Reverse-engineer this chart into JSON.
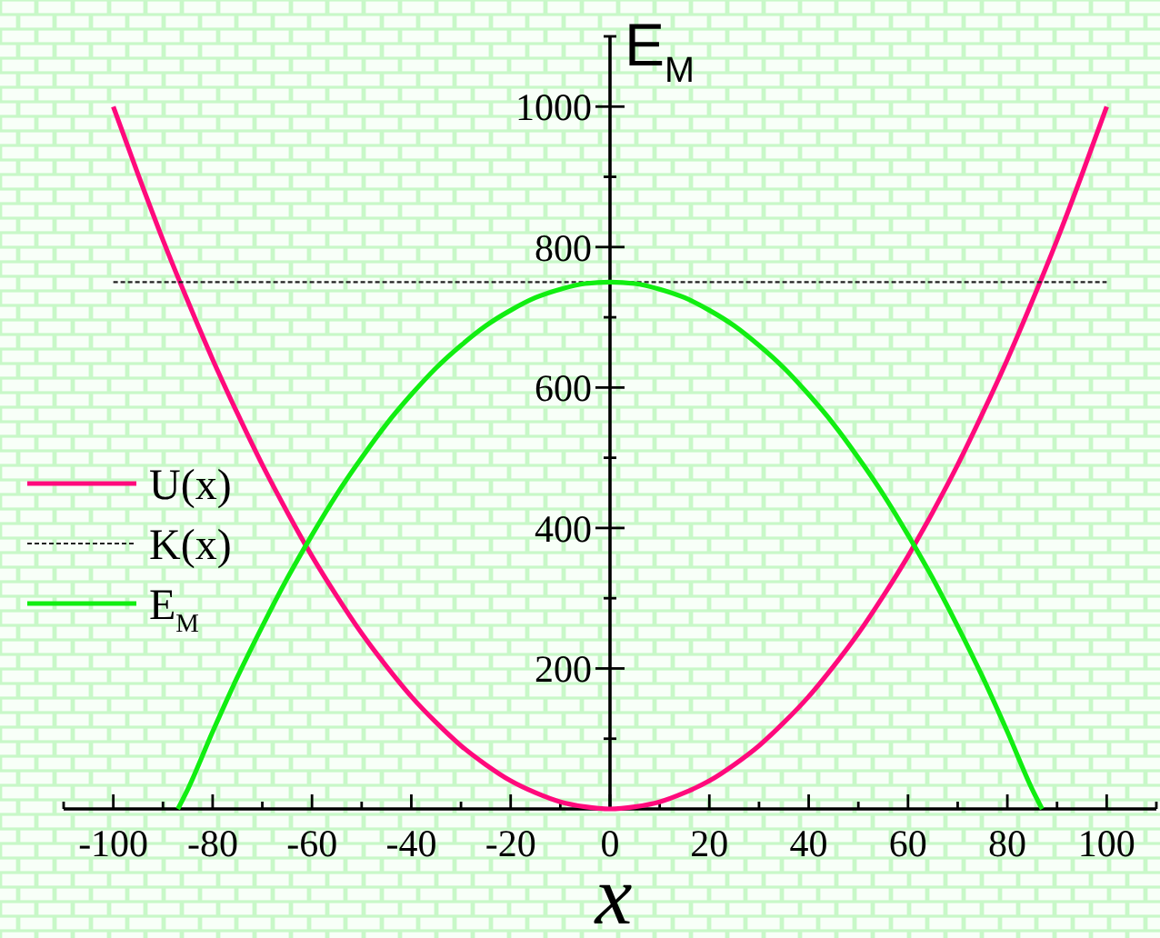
{
  "chart_data": {
    "type": "line",
    "xlabel": "x",
    "ylabel": "E$_{M}$",
    "xlim": [
      -110,
      110
    ],
    "ylim": [
      0,
      1100
    ],
    "xticks": [
      {
        "value": -110,
        "label": null
      },
      -100,
      {
        "value": -90,
        "label": null
      },
      -80,
      {
        "value": -70,
        "label": null
      },
      -60,
      {
        "value": -50,
        "label": null
      },
      -40,
      {
        "value": -30,
        "label": null
      },
      -20,
      {
        "value": -10,
        "label": null
      },
      0,
      {
        "value": 10,
        "label": null
      },
      20,
      {
        "value": 30,
        "label": null
      },
      40,
      {
        "value": 50,
        "label": null
      },
      60,
      {
        "value": 70,
        "label": null
      },
      80,
      {
        "value": 90,
        "label": null
      },
      100,
      {
        "value": 110,
        "label": null
      }
    ],
    "yticks": [
      {
        "value": 100,
        "label": null
      },
      200,
      {
        "value": 300,
        "label": null
      },
      400,
      {
        "value": 500,
        "label": null
      },
      600,
      {
        "value": 700,
        "label": null
      },
      800,
      {
        "value": 900,
        "label": null
      },
      1000,
      {
        "value": 1100,
        "label": null
      }
    ],
    "legend": "left",
    "series": [
      {
        "name": "U(x)",
        "color": "#ff0a7c",
        "x": [
          -100,
          -95,
          -90,
          -85,
          -80,
          -75,
          -70,
          -65,
          -60,
          -55,
          -50,
          -45,
          -40,
          -35,
          -30,
          -25,
          -20,
          -15,
          -10,
          -5,
          0,
          5,
          10,
          15,
          20,
          25,
          30,
          35,
          40,
          45,
          50,
          55,
          60,
          65,
          70,
          75,
          80,
          85,
          90,
          95,
          100
        ],
        "values": [
          1000,
          903,
          810,
          723,
          640,
          563,
          490,
          423,
          360,
          303,
          250,
          203,
          160,
          123,
          90,
          63,
          40,
          23,
          10,
          3,
          0,
          3,
          10,
          23,
          40,
          63,
          90,
          123,
          160,
          203,
          250,
          303,
          360,
          423,
          490,
          563,
          640,
          723,
          810,
          903,
          1000
        ]
      },
      {
        "name": "K(x)",
        "color": "#222222",
        "line_style": "dashed",
        "x": [
          -100,
          100
        ],
        "values": [
          750,
          750
        ]
      },
      {
        "name": "E$_{M}$",
        "color": "#11ee11",
        "x": [
          -87,
          -85,
          -80,
          -75,
          -70,
          -65,
          -60,
          -55,
          -50,
          -45,
          -40,
          -35,
          -30,
          -25,
          -20,
          -15,
          -10,
          -5,
          0,
          5,
          10,
          15,
          20,
          25,
          30,
          35,
          40,
          45,
          50,
          55,
          60,
          65,
          70,
          75,
          80,
          85,
          87
        ],
        "values": [
          0,
          28,
          110,
          188,
          260,
          328,
          390,
          448,
          500,
          548,
          590,
          628,
          660,
          688,
          710,
          728,
          740,
          748,
          750,
          748,
          740,
          728,
          710,
          688,
          660,
          628,
          590,
          548,
          500,
          448,
          390,
          328,
          260,
          188,
          110,
          28,
          0
        ]
      }
    ]
  }
}
